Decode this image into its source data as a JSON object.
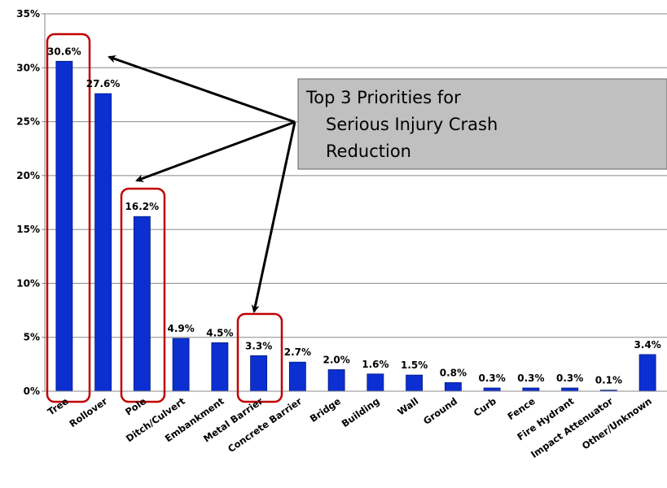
{
  "chart_data": {
    "type": "bar",
    "categories": [
      "Tree",
      "Rollover",
      "Pole",
      "Ditch/Culvert",
      "Embankment",
      "Metal Barrier",
      "Concrete Barrier",
      "Bridge",
      "Building",
      "Wall",
      "Ground",
      "Curb",
      "Fence",
      "Fire Hydrant",
      "Impact Attenuator",
      "Other/Unknown"
    ],
    "values": [
      30.6,
      27.6,
      16.2,
      4.9,
      4.5,
      3.3,
      2.7,
      2.0,
      1.6,
      1.5,
      0.8,
      0.3,
      0.3,
      0.3,
      0.1,
      3.4
    ],
    "value_labels": [
      "30.6%",
      "27.6%",
      "16.2%",
      "4.9%",
      "4.5%",
      "3.3%",
      "2.7%",
      "2.0%",
      "1.6%",
      "1.5%",
      "0.8%",
      "0.3%",
      "0.3%",
      "0.3%",
      "0.1%",
      "3.4%"
    ],
    "color": "#0b2fd0",
    "ylim": [
      0,
      35
    ],
    "yticks": [
      {
        "value": 0,
        "label": "0%"
      },
      {
        "value": 5,
        "label": "5%"
      },
      {
        "value": 10,
        "label": "10%"
      },
      {
        "value": 15,
        "label": "15%"
      },
      {
        "value": 20,
        "label": "20%"
      },
      {
        "value": 25,
        "label": "25%"
      },
      {
        "value": 30,
        "label": "30%"
      },
      {
        "value": 35,
        "label": "35%"
      }
    ],
    "grid": true,
    "annotation": [
      "Top 3 Priorities for",
      "Serious Injury Crash",
      "Reduction"
    ]
  }
}
